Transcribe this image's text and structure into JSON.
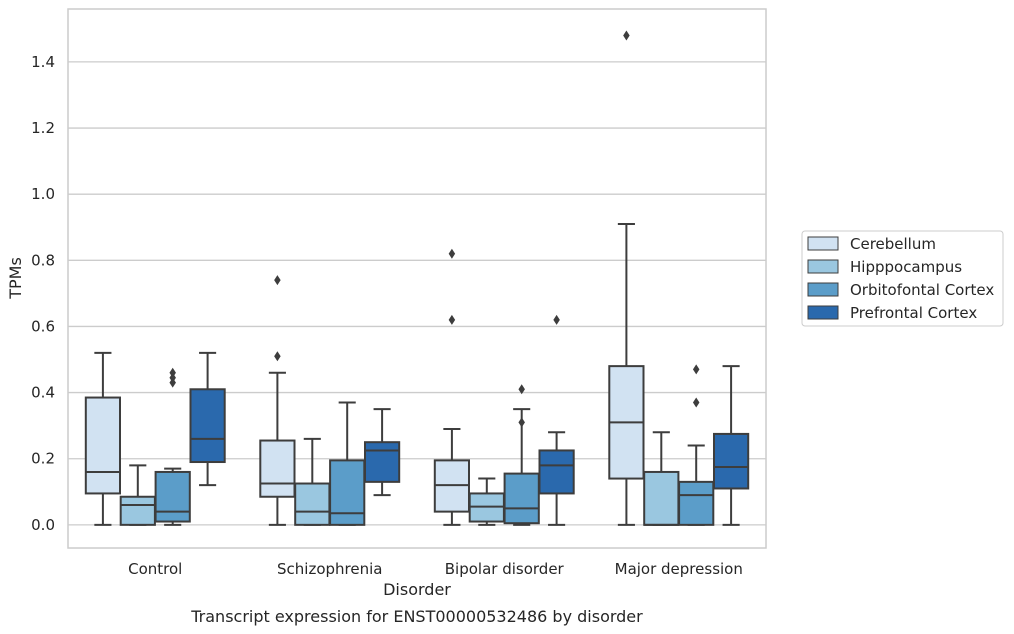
{
  "caption": "Transcript expression for ENST00000532486 by disorder",
  "chart_data": {
    "type": "box",
    "xlabel": "Disorder",
    "ylabel": "TPMs",
    "ylim": [
      -0.07,
      1.56
    ],
    "yticks": [
      "0.0",
      "0.2",
      "0.4",
      "0.6",
      "0.8",
      "1.0",
      "1.2",
      "1.4"
    ],
    "grid": "horizontal",
    "legend_position": "right",
    "categories": [
      "Control",
      "Schizophrenia",
      "Bipolar disorder",
      "Major depression"
    ],
    "series": [
      {
        "name": "Cerebellum",
        "color": "#d1e2f2",
        "boxes": [
          {
            "whisker_low": 0.0,
            "q1": 0.095,
            "median": 0.16,
            "q3": 0.385,
            "whisker_high": 0.52,
            "outliers": []
          },
          {
            "whisker_low": 0.0,
            "q1": 0.085,
            "median": 0.125,
            "q3": 0.255,
            "whisker_high": 0.46,
            "outliers": [
              0.51,
              0.74
            ]
          },
          {
            "whisker_low": 0.0,
            "q1": 0.04,
            "median": 0.12,
            "q3": 0.195,
            "whisker_high": 0.29,
            "outliers": [
              0.62,
              0.82
            ]
          },
          {
            "whisker_low": 0.0,
            "q1": 0.14,
            "median": 0.31,
            "q3": 0.48,
            "whisker_high": 0.91,
            "outliers": [
              1.48
            ]
          }
        ]
      },
      {
        "name": "Hipppocampus",
        "color": "#9ac7e0",
        "boxes": [
          {
            "whisker_low": 0.0,
            "q1": 0.0,
            "median": 0.06,
            "q3": 0.085,
            "whisker_high": 0.18,
            "outliers": []
          },
          {
            "whisker_low": 0.0,
            "q1": 0.0,
            "median": 0.04,
            "q3": 0.125,
            "whisker_high": 0.26,
            "outliers": []
          },
          {
            "whisker_low": 0.0,
            "q1": 0.01,
            "median": 0.055,
            "q3": 0.095,
            "whisker_high": 0.14,
            "outliers": []
          },
          {
            "whisker_low": 0.0,
            "q1": 0.0,
            "median": 0.0,
            "q3": 0.16,
            "whisker_high": 0.28,
            "outliers": []
          }
        ]
      },
      {
        "name": "Orbitofontal Cortex",
        "color": "#5b9dc9",
        "boxes": [
          {
            "whisker_low": 0.0,
            "q1": 0.01,
            "median": 0.04,
            "q3": 0.16,
            "whisker_high": 0.17,
            "outliers": [
              0.43,
              0.445,
              0.46
            ]
          },
          {
            "whisker_low": 0.0,
            "q1": 0.0,
            "median": 0.035,
            "q3": 0.195,
            "whisker_high": 0.37,
            "outliers": []
          },
          {
            "whisker_low": 0.0,
            "q1": 0.005,
            "median": 0.05,
            "q3": 0.155,
            "whisker_high": 0.35,
            "outliers": [
              0.31,
              0.41
            ]
          },
          {
            "whisker_low": 0.0,
            "q1": 0.0,
            "median": 0.09,
            "q3": 0.13,
            "whisker_high": 0.24,
            "outliers": [
              0.37,
              0.47
            ]
          }
        ]
      },
      {
        "name": "Prefrontal Cortex",
        "color": "#2a69ad",
        "boxes": [
          {
            "whisker_low": 0.12,
            "q1": 0.19,
            "median": 0.26,
            "q3": 0.41,
            "whisker_high": 0.52,
            "outliers": []
          },
          {
            "whisker_low": 0.09,
            "q1": 0.13,
            "median": 0.225,
            "q3": 0.25,
            "whisker_high": 0.35,
            "outliers": []
          },
          {
            "whisker_low": 0.0,
            "q1": 0.095,
            "median": 0.18,
            "q3": 0.225,
            "whisker_high": 0.28,
            "outliers": [
              0.62
            ]
          },
          {
            "whisker_low": 0.0,
            "q1": 0.11,
            "median": 0.175,
            "q3": 0.275,
            "whisker_high": 0.48,
            "outliers": []
          }
        ]
      }
    ]
  }
}
